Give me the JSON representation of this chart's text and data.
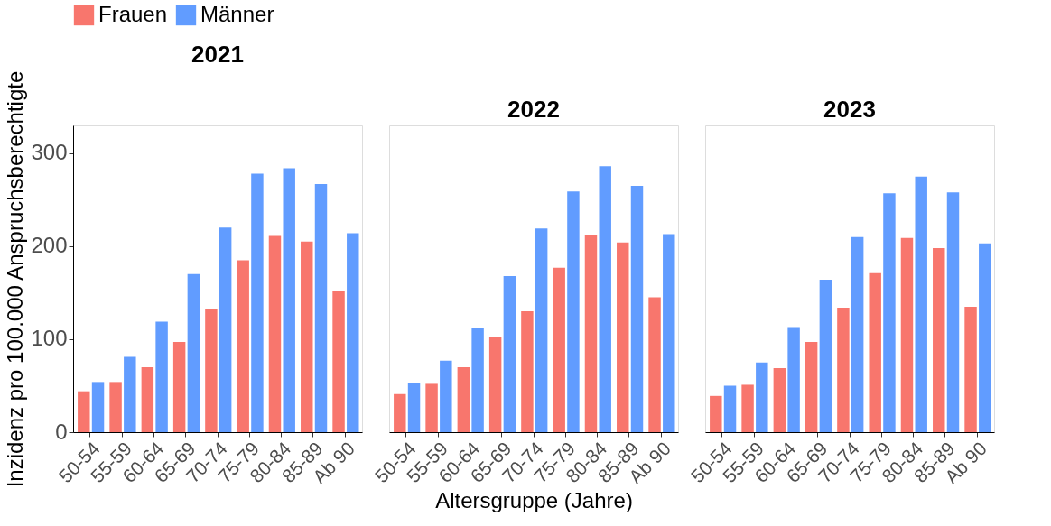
{
  "chart_data": [
    {
      "type": "bar",
      "title": "2021",
      "ylabel": "Inzidenz pro 100.000 Anspruchsberechtigte",
      "legend": "top",
      "grid": false,
      "ylim": [
        0,
        330
      ],
      "yticks": [
        0,
        100,
        200,
        300
      ],
      "categories": [
        "50-54",
        "55-59",
        "60-64",
        "65-69",
        "70-74",
        "75-79",
        "80-84",
        "85-89",
        "Ab 90"
      ],
      "series": [
        {
          "name": "Frauen",
          "color": "#f8766d",
          "values": [
            44,
            54,
            70,
            97,
            133,
            185,
            211,
            205,
            152
          ]
        },
        {
          "name": "Männer",
          "color": "#619cff",
          "values": [
            54,
            81,
            119,
            170,
            220,
            278,
            284,
            267,
            214
          ]
        }
      ]
    },
    {
      "type": "bar",
      "title": "2022",
      "xlabel": "Altersgruppe (Jahre)",
      "legend": "top",
      "grid": false,
      "ylim": [
        0,
        330
      ],
      "yticks": [
        0,
        100,
        200,
        300
      ],
      "tick_labels": "x",
      "categories": [
        "50-54",
        "55-59",
        "60-64",
        "65-69",
        "70-74",
        "75-79",
        "80-84",
        "85-89",
        "Ab 90"
      ],
      "series": [
        {
          "name": "Frauen",
          "color": "#f8766d",
          "values": [
            41,
            52,
            70,
            102,
            130,
            177,
            212,
            204,
            145
          ]
        },
        {
          "name": "Männer",
          "color": "#619cff",
          "values": [
            53,
            77,
            112,
            168,
            219,
            259,
            286,
            265,
            213
          ]
        }
      ]
    },
    {
      "type": "bar",
      "title": "2023",
      "legend": "top",
      "grid": false,
      "ylim": [
        0,
        330
      ],
      "yticks": [
        0,
        100,
        200,
        300
      ],
      "tick_labels": "x",
      "categories": [
        "50-54",
        "55-59",
        "60-64",
        "65-69",
        "70-74",
        "75-79",
        "80-84",
        "85-89",
        "Ab 90"
      ],
      "series": [
        {
          "name": "Frauen",
          "color": "#f8766d",
          "values": [
            39,
            51,
            69,
            97,
            134,
            171,
            209,
            198,
            135
          ]
        },
        {
          "name": "Männer",
          "color": "#619cff",
          "values": [
            50,
            75,
            113,
            164,
            210,
            257,
            275,
            258,
            203
          ]
        }
      ]
    }
  ]
}
